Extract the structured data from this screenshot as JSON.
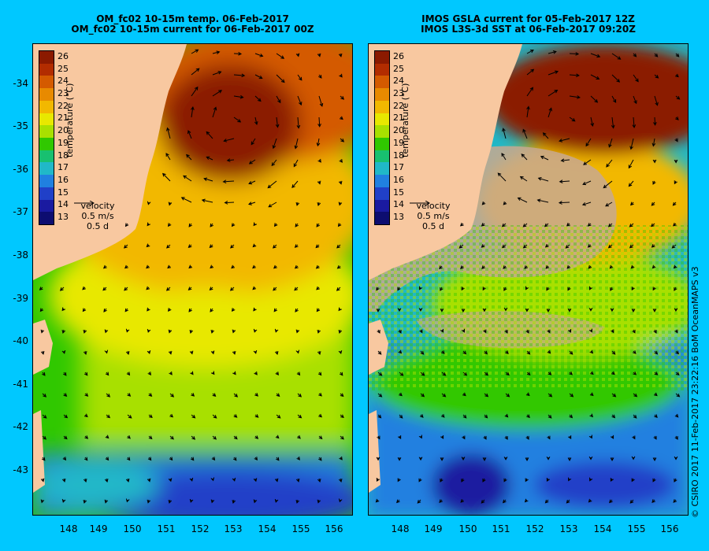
{
  "panels": [
    {
      "title_line1": "OM_fc02 10-15m temp. 06-Feb-2017",
      "title_line2": "OM_fc02 10-15m current for 06-Feb-2017 00Z"
    },
    {
      "title_line1": "IMOS GSLA current for 05-Feb-2017 12Z",
      "title_line2": "IMOS L3S-3d SST at 06-Feb-2017 09:20Z"
    }
  ],
  "colorbar": {
    "title": "temperature (°C)",
    "labels": [
      "26",
      "25",
      "24",
      "23",
      "22",
      "21",
      "20",
      "19",
      "18",
      "17",
      "16",
      "15",
      "14",
      "13"
    ],
    "colors": [
      "#8b1a00",
      "#b22c00",
      "#d45a00",
      "#e88a00",
      "#f2b800",
      "#e8e800",
      "#a8e000",
      "#30c800",
      "#18c070",
      "#20b8c8",
      "#2080e0",
      "#2040c8",
      "#1a1aa0",
      "#0d0d70"
    ]
  },
  "velocity_legend": {
    "label": "velocity",
    "speed": "0.5 m/s",
    "time": "0.5 d"
  },
  "y_ticks": [
    "-34",
    "-35",
    "-36",
    "-37",
    "-38",
    "-39",
    "-40",
    "-41",
    "-42",
    "-43"
  ],
  "x_ticks": [
    "148",
    "149",
    "150",
    "151",
    "152",
    "153",
    "154",
    "155",
    "156"
  ],
  "credit": "© CSIRO 2017   11-Feb-2017 23:22:16 BoM OceanMAPS v3",
  "land_color": "#f8c8a0",
  "nodata_color": "#c8a890",
  "background_color": "#00c8ff"
}
